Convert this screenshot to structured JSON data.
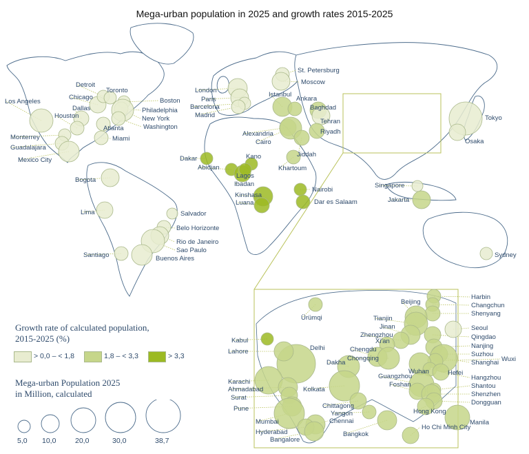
{
  "title": "Mega-urban population in 2025 and growth rates 2015-2025",
  "colors": {
    "low": "#e8ecd0",
    "mid": "#c6d68a",
    "high": "#9cba23",
    "outline": "#a9b88a",
    "land": "#ffffff",
    "coast": "#4a6a8a",
    "leader": "#b9c25a"
  },
  "legend": {
    "growth_title_line1": "Growth rate of calculated population,",
    "growth_title_line2": "2015-2025 (%)",
    "growth_low": "> 0,0 – < 1,8",
    "growth_mid": "1,8 – < 3,3",
    "growth_high": "> 3,3",
    "size_title_line1": "Mega-urban Population 2025",
    "size_title_line2": "in Million, calculated",
    "sizes": [
      "5,0",
      "10,0",
      "20,0",
      "30,0",
      "38,7"
    ]
  },
  "cities_world": [
    {
      "name": "Los Angeles",
      "class": "low"
    },
    {
      "name": "Chicago",
      "class": "low"
    },
    {
      "name": "Detroit",
      "class": "low"
    },
    {
      "name": "Toronto",
      "class": "low"
    },
    {
      "name": "Boston",
      "class": "low"
    },
    {
      "name": "Dallas",
      "class": "low"
    },
    {
      "name": "Philadelphia",
      "class": "low"
    },
    {
      "name": "Houston",
      "class": "low"
    },
    {
      "name": "New York",
      "class": "low"
    },
    {
      "name": "Washington",
      "class": "low"
    },
    {
      "name": "Atlanta",
      "class": "low"
    },
    {
      "name": "Miami",
      "class": "low"
    },
    {
      "name": "Monterrey",
      "class": "low"
    },
    {
      "name": "Guadalajara",
      "class": "low"
    },
    {
      "name": "Mexico City",
      "class": "low"
    },
    {
      "name": "Bogota",
      "class": "low"
    },
    {
      "name": "Lima",
      "class": "low"
    },
    {
      "name": "Santiago",
      "class": "low"
    },
    {
      "name": "Salvador",
      "class": "low"
    },
    {
      "name": "Belo Horizonte",
      "class": "low"
    },
    {
      "name": "Rio de Janeiro",
      "class": "low"
    },
    {
      "name": "Sao Paulo",
      "class": "low"
    },
    {
      "name": "Buenos Aires",
      "class": "low"
    },
    {
      "name": "London",
      "class": "low"
    },
    {
      "name": "Paris",
      "class": "low"
    },
    {
      "name": "Barcelona",
      "class": "low"
    },
    {
      "name": "Madrid",
      "class": "low"
    },
    {
      "name": "St. Petersburg",
      "class": "low"
    },
    {
      "name": "Moscow",
      "class": "low"
    },
    {
      "name": "Istanbul",
      "class": "mid"
    },
    {
      "name": "Ankara",
      "class": "mid"
    },
    {
      "name": "Baghdad",
      "class": "mid"
    },
    {
      "name": "Tehran",
      "class": "low"
    },
    {
      "name": "Riyadh",
      "class": "mid"
    },
    {
      "name": "Alexandria",
      "class": "mid"
    },
    {
      "name": "Cairo",
      "class": "mid"
    },
    {
      "name": "Jiddah",
      "class": "mid"
    },
    {
      "name": "Khartoum",
      "class": "mid"
    },
    {
      "name": "Dakar",
      "class": "high"
    },
    {
      "name": "Kano",
      "class": "high"
    },
    {
      "name": "Abidjan",
      "class": "high"
    },
    {
      "name": "Lagos",
      "class": "high"
    },
    {
      "name": "Ibadan",
      "class": "high"
    },
    {
      "name": "Kinshasa",
      "class": "high"
    },
    {
      "name": "Luana",
      "class": "high"
    },
    {
      "name": "Nairobi",
      "class": "high"
    },
    {
      "name": "Dar es Salaam",
      "class": "high"
    },
    {
      "name": "Tokyo",
      "class": "low"
    },
    {
      "name": "Osaka",
      "class": "low"
    },
    {
      "name": "Singapore",
      "class": "low"
    },
    {
      "name": "Jakarta",
      "class": "mid"
    },
    {
      "name": "Sydney",
      "class": "low"
    }
  ],
  "cities_inset": [
    {
      "name": "Harbin",
      "class": "mid"
    },
    {
      "name": "Changchun",
      "class": "mid"
    },
    {
      "name": "Shenyang",
      "class": "mid"
    },
    {
      "name": "Beijing",
      "class": "mid"
    },
    {
      "name": "Ürümqi",
      "class": "mid"
    },
    {
      "name": "Tianjin",
      "class": "mid"
    },
    {
      "name": "Jinan",
      "class": "mid"
    },
    {
      "name": "Seoul",
      "class": "low"
    },
    {
      "name": "Zhengzhou",
      "class": "mid"
    },
    {
      "name": "Qingdao",
      "class": "mid"
    },
    {
      "name": "Xi'an",
      "class": "mid"
    },
    {
      "name": "Nanjing",
      "class": "mid"
    },
    {
      "name": "Kabul",
      "class": "high"
    },
    {
      "name": "Delhi",
      "class": "mid"
    },
    {
      "name": "Chengdu",
      "class": "mid"
    },
    {
      "name": "Suzhou",
      "class": "mid"
    },
    {
      "name": "Lahore",
      "class": "mid"
    },
    {
      "name": "Chongqing",
      "class": "mid"
    },
    {
      "name": "Shanghai",
      "class": "mid"
    },
    {
      "name": "Wuxi",
      "class": "mid"
    },
    {
      "name": "Dakha",
      "class": "mid"
    },
    {
      "name": "Wuhan",
      "class": "mid"
    },
    {
      "name": "Hefei",
      "class": "mid"
    },
    {
      "name": "Hangzhou",
      "class": "mid"
    },
    {
      "name": "Karachi",
      "class": "mid"
    },
    {
      "name": "Guangzhou",
      "class": "mid"
    },
    {
      "name": "Ahmadabad",
      "class": "mid"
    },
    {
      "name": "Kolkata",
      "class": "mid"
    },
    {
      "name": "Foshan",
      "class": "mid"
    },
    {
      "name": "Shantou",
      "class": "mid"
    },
    {
      "name": "Surat",
      "class": "mid"
    },
    {
      "name": "Shenzhen",
      "class": "mid"
    },
    {
      "name": "Dongguan",
      "class": "mid"
    },
    {
      "name": "Chittagong",
      "class": "mid"
    },
    {
      "name": "Pune",
      "class": "mid"
    },
    {
      "name": "Hong Kong",
      "class": "mid"
    },
    {
      "name": "Yangon",
      "class": "mid"
    },
    {
      "name": "Mumbai",
      "class": "mid"
    },
    {
      "name": "Chennai",
      "class": "mid"
    },
    {
      "name": "Manila",
      "class": "mid"
    },
    {
      "name": "Hyderabad",
      "class": "mid"
    },
    {
      "name": "Bangalore",
      "class": "mid"
    },
    {
      "name": "Bangkok",
      "class": "mid"
    },
    {
      "name": "Ho Chi Minh City",
      "class": "mid"
    }
  ]
}
